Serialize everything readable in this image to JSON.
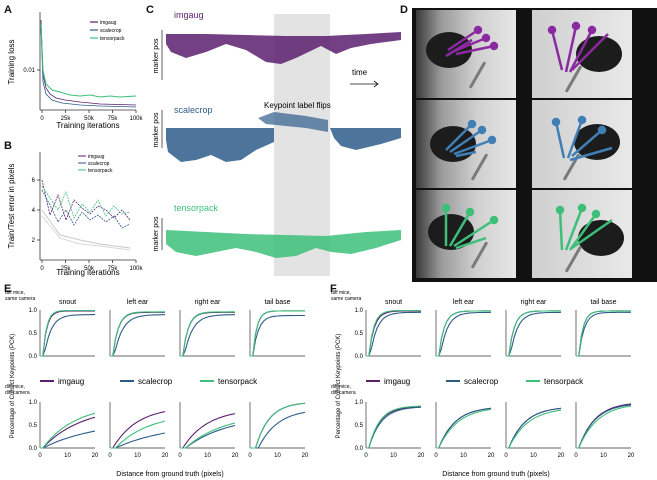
{
  "panels": {
    "A": "A",
    "B": "B",
    "C": "C",
    "D": "D",
    "E": "E",
    "F": "F"
  },
  "panel_a": {
    "ylabel": "Training loss",
    "xlabel": "Training iterations",
    "yticks": [
      "0.01"
    ],
    "xticks": [
      "0",
      "25k",
      "50k",
      "75k",
      "100k"
    ],
    "legend": [
      "imgaug",
      "scalecrop",
      "tensorpack"
    ]
  },
  "panel_b": {
    "ylabel": "Train/Test error in pixels",
    "xlabel": "Training iterations",
    "yticks": [
      "2",
      "4",
      "6"
    ],
    "xticks": [
      "0",
      "25k",
      "50k",
      "75k",
      "100k"
    ],
    "legend": [
      "imgaug",
      "scalecrop",
      "tensorpack"
    ]
  },
  "panel_c": {
    "rows": [
      {
        "title": "imgaug",
        "ylabel": "marker pos"
      },
      {
        "title": "scalecrop",
        "ylabel": "marker pos"
      },
      {
        "title": "tensorpack",
        "ylabel": "marker pos"
      }
    ],
    "time_label": "time",
    "flip_label": "Keypoint label flips"
  },
  "panel_e": {
    "row1_label": [
      "diff mice,",
      "same camera"
    ],
    "row2_label": [
      "diff mice,",
      "diff camera"
    ],
    "ylabel": "Percentage of Correct Keypoints (PCK)",
    "xlabel": "Distance from ground truth (pixels)",
    "subtitles": [
      "snout",
      "left ear",
      "right ear",
      "tail base"
    ],
    "yticks": [
      "0.0",
      "0.5",
      "1.0"
    ],
    "xticks": [
      "0",
      "10",
      "20"
    ]
  },
  "panel_f": {
    "row1_label": [
      "diff mice,",
      "same camera"
    ],
    "row2_label": [
      "diff mice,",
      "diff camera"
    ],
    "ylabel": "Percentage of Correct Keypoints (PCK)",
    "xlabel": "Distance from ground truth (pixels)",
    "subtitles": [
      "snout",
      "left ear",
      "right ear",
      "tail base"
    ],
    "yticks": [
      "0.0",
      "0.5",
      "1.0"
    ],
    "xticks": [
      "0",
      "10",
      "20"
    ]
  },
  "legend_main": [
    "imgaug",
    "scalecrop",
    "tensorpack"
  ],
  "colors": {
    "imgaug": "#5b1f6e",
    "scalecrop": "#2e5c8a",
    "tensorpack": "#3dbf7a",
    "grey": "#c8c8c8"
  }
}
